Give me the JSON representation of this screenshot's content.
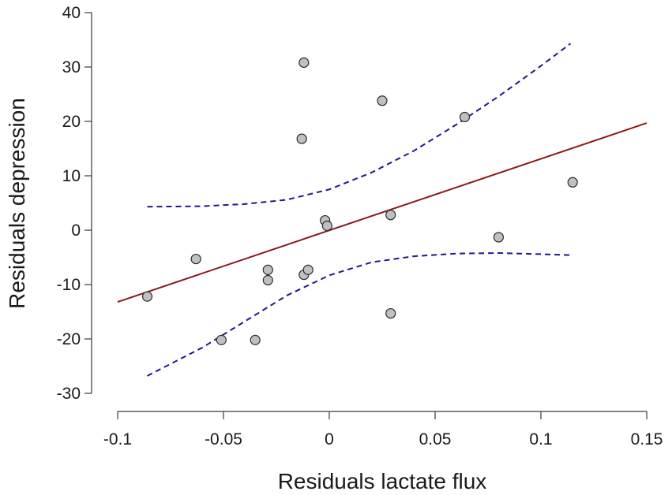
{
  "chart_data": {
    "type": "scatter",
    "title": "",
    "xlabel": "Residuals lactate flux",
    "ylabel": "Residuals depression",
    "xlim": [
      -0.1,
      0.15
    ],
    "ylim": [
      -30,
      40
    ],
    "xticks": [
      -0.1,
      -0.05,
      0,
      0.05,
      0.1,
      0.15
    ],
    "xtick_labels": [
      "-0.1",
      "-0.05",
      "0",
      "0.05",
      "0.1",
      "0.15"
    ],
    "yticks": [
      -30,
      -20,
      -10,
      0,
      10,
      20,
      30,
      40
    ],
    "ytick_labels": [
      "-30",
      "-20",
      "-10",
      "0",
      "10",
      "20",
      "30",
      "40"
    ],
    "grid": false,
    "points": [
      {
        "x": -0.086,
        "y": -12.2
      },
      {
        "x": -0.063,
        "y": -5.3
      },
      {
        "x": -0.051,
        "y": -20.2
      },
      {
        "x": -0.035,
        "y": -20.2
      },
      {
        "x": -0.029,
        "y": -7.3
      },
      {
        "x": -0.029,
        "y": -9.2
      },
      {
        "x": -0.013,
        "y": 16.8
      },
      {
        "x": -0.012,
        "y": 30.8
      },
      {
        "x": -0.012,
        "y": -8.2
      },
      {
        "x": -0.01,
        "y": -7.3
      },
      {
        "x": -0.002,
        "y": 1.8
      },
      {
        "x": -0.001,
        "y": 0.8
      },
      {
        "x": 0.025,
        "y": 23.8
      },
      {
        "x": 0.029,
        "y": 2.8
      },
      {
        "x": 0.029,
        "y": -15.3
      },
      {
        "x": 0.064,
        "y": 20.8
      },
      {
        "x": 0.08,
        "y": -1.3
      },
      {
        "x": 0.115,
        "y": 8.8
      }
    ],
    "fit_line": {
      "x": [
        -0.1,
        0.15
      ],
      "y": [
        -13.2,
        19.7
      ]
    },
    "ci_upper": {
      "x": [
        -0.086,
        -0.06,
        -0.04,
        -0.02,
        0.0,
        0.02,
        0.04,
        0.06,
        0.08,
        0.1,
        0.114
      ],
      "y": [
        4.3,
        4.4,
        4.8,
        5.6,
        7.5,
        10.6,
        14.6,
        19.4,
        24.6,
        30.2,
        34.3
      ]
    },
    "ci_lower": {
      "x": [
        -0.086,
        -0.06,
        -0.04,
        -0.02,
        0.0,
        0.02,
        0.04,
        0.06,
        0.08,
        0.1,
        0.114
      ],
      "y": [
        -26.8,
        -21.6,
        -16.8,
        -12.0,
        -8.3,
        -5.9,
        -4.8,
        -4.3,
        -4.2,
        -4.4,
        -4.6
      ]
    },
    "colors": {
      "point_fill": "#c0c0c0",
      "fit_line": "#8b1a1a",
      "ci_line": "#1a1a8c"
    }
  }
}
